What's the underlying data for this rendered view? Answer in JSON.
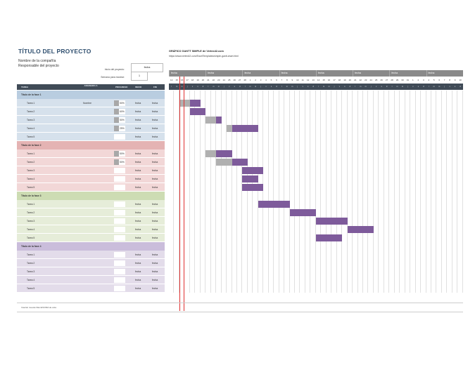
{
  "title": "TÍTULO DEL PROYECTO",
  "company": "Nombre de la compañía",
  "owner": "Responsable del proyecto",
  "start_label": "Inicio del proyecto:",
  "start_value": "fecha",
  "week_label": "Semana para mostrar:",
  "week_value": "1",
  "credit_title": "GRÁFICO GANTT SIMPLE de Vertex42.com",
  "credit_url": "https://www.vertex42.com/ExcelTemplates/simple-gantt-chart.html",
  "header": {
    "task": "TAREA",
    "assigned": "ASIGNADO A",
    "progress": "PROGRESO",
    "start": "INICIO",
    "end": "FIN"
  },
  "weeks": [
    "fecha",
    "fecha",
    "fecha",
    "fecha",
    "fecha",
    "fecha",
    "fecha",
    "fecha"
  ],
  "days": [
    "14",
    "15",
    "16",
    "17",
    "18",
    "19",
    "20",
    "21",
    "22",
    "23",
    "24",
    "25",
    "26",
    "27",
    "28",
    "1",
    "2",
    "3",
    "4",
    "5",
    "6",
    "7",
    "8",
    "9",
    "10",
    "11",
    "12",
    "13",
    "14",
    "15",
    "16",
    "17",
    "18",
    "19",
    "20",
    "21",
    "22",
    "23",
    "24",
    "25",
    "26",
    "27",
    "28",
    "29",
    "30",
    "31",
    "1",
    "2",
    "3",
    "4",
    "5",
    "6",
    "7",
    "8",
    "9",
    "10"
  ],
  "dow": [
    "l",
    "m",
    "m",
    "j",
    "v",
    "s",
    "d"
  ],
  "phases": [
    {
      "title": "Título de la fase 1",
      "color": "#d6e1ec",
      "headcolor": "#b9cde0",
      "barcolor": "#7e5b9b",
      "tasks": [
        {
          "name": "Tarea 1",
          "assigned": "Nombre",
          "progress": "50%",
          "pct": 0.5,
          "start": "fecha",
          "end": "fecha"
        },
        {
          "name": "Tarea 2",
          "assigned": "",
          "progress": "60%",
          "pct": 0.6,
          "start": "fecha",
          "end": "fecha"
        },
        {
          "name": "Tarea 3",
          "assigned": "",
          "progress": "50%",
          "pct": 0.5,
          "start": "fecha",
          "end": "fecha"
        },
        {
          "name": "Tarea 4",
          "assigned": "",
          "progress": "25%",
          "pct": 0.25,
          "start": "fecha",
          "end": "fecha"
        },
        {
          "name": "Tarea 5",
          "assigned": "",
          "progress": "",
          "pct": 0,
          "start": "fecha",
          "end": "fecha"
        }
      ]
    },
    {
      "title": "Título de la fase 2",
      "color": "#f2d7d7",
      "headcolor": "#e4b3b3",
      "barcolor": "#7e5b9b",
      "tasks": [
        {
          "name": "Tarea 1",
          "assigned": "",
          "progress": "50%",
          "pct": 0.5,
          "start": "fecha",
          "end": "fecha"
        },
        {
          "name": "Tarea 2",
          "assigned": "",
          "progress": "50%",
          "pct": 0.5,
          "start": "fecha",
          "end": "fecha"
        },
        {
          "name": "Tarea 3",
          "assigned": "",
          "progress": "",
          "pct": 0,
          "start": "fecha",
          "end": "fecha"
        },
        {
          "name": "Tarea 4",
          "assigned": "",
          "progress": "",
          "pct": 0,
          "start": "fecha",
          "end": "fecha"
        },
        {
          "name": "Tarea 5",
          "assigned": "",
          "progress": "",
          "pct": 0,
          "start": "fecha",
          "end": "fecha"
        }
      ]
    },
    {
      "title": "Título de la fase 3",
      "color": "#e6edd9",
      "headcolor": "#cddcb3",
      "barcolor": "#7e5b9b",
      "tasks": [
        {
          "name": "Tarea 1",
          "assigned": "",
          "progress": "",
          "pct": 0,
          "start": "fecha",
          "end": "fecha"
        },
        {
          "name": "Tarea 2",
          "assigned": "",
          "progress": "",
          "pct": 0,
          "start": "fecha",
          "end": "fecha"
        },
        {
          "name": "Tarea 3",
          "assigned": "",
          "progress": "",
          "pct": 0,
          "start": "fecha",
          "end": "fecha"
        },
        {
          "name": "Tarea 4",
          "assigned": "",
          "progress": "",
          "pct": 0,
          "start": "fecha",
          "end": "fecha"
        },
        {
          "name": "Tarea 5",
          "assigned": "",
          "progress": "",
          "pct": 0,
          "start": "fecha",
          "end": "fecha"
        }
      ]
    },
    {
      "title": "Título de la fase 4",
      "color": "#e3dcea",
      "headcolor": "#cabddb",
      "barcolor": "#7e5b9b",
      "tasks": [
        {
          "name": "Tarea 1",
          "assigned": "",
          "progress": "",
          "pct": 0,
          "start": "fecha",
          "end": "fecha"
        },
        {
          "name": "Tarea 2",
          "assigned": "",
          "progress": "",
          "pct": 0,
          "start": "fecha",
          "end": "fecha"
        },
        {
          "name": "Tarea 3",
          "assigned": "",
          "progress": "",
          "pct": 0,
          "start": "fecha",
          "end": "fecha"
        },
        {
          "name": "Tarea 4",
          "assigned": "",
          "progress": "",
          "pct": 0,
          "start": "fecha",
          "end": "fecha"
        },
        {
          "name": "Tarea 5",
          "assigned": "",
          "progress": "",
          "pct": 0,
          "start": "fecha",
          "end": "fecha"
        }
      ]
    }
  ],
  "bars": [
    [
      {
        "start": 2,
        "len": 2,
        "done": 1
      },
      {
        "start": 4,
        "len": 2,
        "done": 0
      }
    ],
    [
      {
        "start": 4,
        "len": 1,
        "done": 0
      },
      {
        "start": 5,
        "len": 2,
        "done": 0
      }
    ],
    [
      {
        "start": 7,
        "len": 2,
        "done": 1
      },
      {
        "start": 9,
        "len": 1,
        "done": 0
      }
    ],
    [
      {
        "start": 11,
        "len": 1,
        "done": 1
      },
      {
        "start": 12,
        "len": 5,
        "done": 0
      }
    ],
    [],
    [
      {
        "start": 7,
        "len": 2,
        "done": 1
      },
      {
        "start": 9,
        "len": 3,
        "done": 0
      }
    ],
    [
      {
        "start": 9,
        "len": 3,
        "done": 1
      },
      {
        "start": 12,
        "len": 3,
        "done": 0
      }
    ],
    [
      {
        "start": 14,
        "len": 4,
        "done": 0
      }
    ],
    [
      {
        "start": 14,
        "len": 3,
        "done": 0
      }
    ],
    [
      {
        "start": 14,
        "len": 4,
        "done": 0
      }
    ],
    [
      {
        "start": 17,
        "len": 6,
        "done": 0
      }
    ],
    [
      {
        "start": 23,
        "len": 5,
        "done": 0
      }
    ],
    [
      {
        "start": 28,
        "len": 6,
        "done": 0
      }
    ],
    [
      {
        "start": 34,
        "len": 5,
        "done": 0
      }
    ],
    [
      {
        "start": 28,
        "len": 5,
        "done": 0
      }
    ],
    [],
    [],
    [],
    [],
    []
  ],
  "footer": "Insertar nuevas filas ENCIMA de ésta"
}
